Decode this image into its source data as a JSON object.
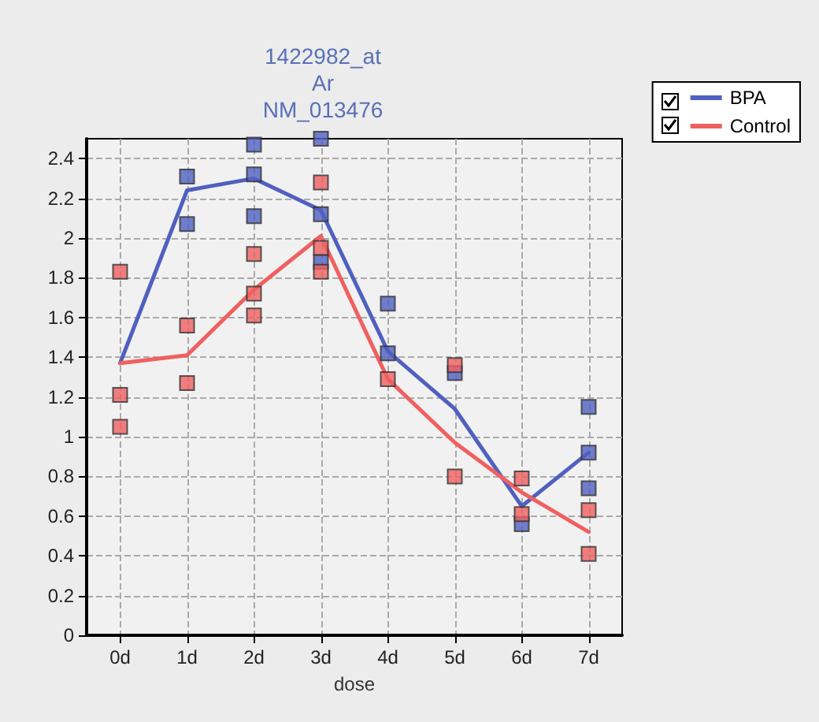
{
  "chart_data": {
    "type": "line",
    "title": "1422982_at\nAr\nNM_013476",
    "xlabel": "dose",
    "categories": [
      "0d",
      "1d",
      "2d",
      "3d",
      "4d",
      "5d",
      "6d",
      "7d"
    ],
    "ylim": [
      0,
      2.5
    ],
    "yticks": [
      0,
      0.2,
      0.4,
      0.6,
      0.8,
      1,
      1.2,
      1.4,
      1.6,
      1.8,
      2,
      2.2,
      2.4
    ],
    "grid": true,
    "legend": "top right",
    "line_style": "solid",
    "series": [
      {
        "name": "BPA",
        "marker": "none",
        "color": "#5060c0",
        "values": [
          1.37,
          2.24,
          2.3,
          2.14,
          1.43,
          1.14,
          0.65,
          0.92
        ]
      },
      {
        "name": "Control",
        "marker": "none",
        "color": "#f06060",
        "values": [
          1.37,
          1.41,
          1.74,
          2.01,
          1.29,
          0.97,
          0.72,
          0.52
        ]
      },
      {
        "type": "scatter",
        "marker": "square",
        "color": "#5060c0",
        "x": [
          "1d",
          "1d",
          "2d",
          "2d",
          "2d",
          "3d",
          "3d",
          "3d",
          "4d",
          "4d",
          "5d",
          "6d",
          "7d",
          "7d",
          "7d"
        ],
        "values": [
          2.31,
          2.07,
          2.47,
          2.32,
          2.11,
          2.5,
          2.12,
          1.88,
          1.67,
          1.42,
          1.32,
          0.56,
          1.15,
          0.92,
          0.74
        ]
      },
      {
        "type": "scatter",
        "marker": "square",
        "color": "#f06060",
        "x": [
          "0d",
          "0d",
          "0d",
          "1d",
          "1d",
          "2d",
          "2d",
          "2d",
          "3d",
          "3d",
          "3d",
          "4d",
          "5d",
          "5d",
          "5d",
          "6d",
          "6d",
          "7d",
          "7d"
        ],
        "values": [
          1.83,
          1.21,
          1.05,
          1.56,
          1.27,
          1.92,
          1.72,
          1.61,
          2.28,
          1.95,
          1.83,
          1.29,
          1.36,
          null,
          0.8,
          0.79,
          0.61,
          0.63,
          0.41
        ]
      }
    ]
  }
}
